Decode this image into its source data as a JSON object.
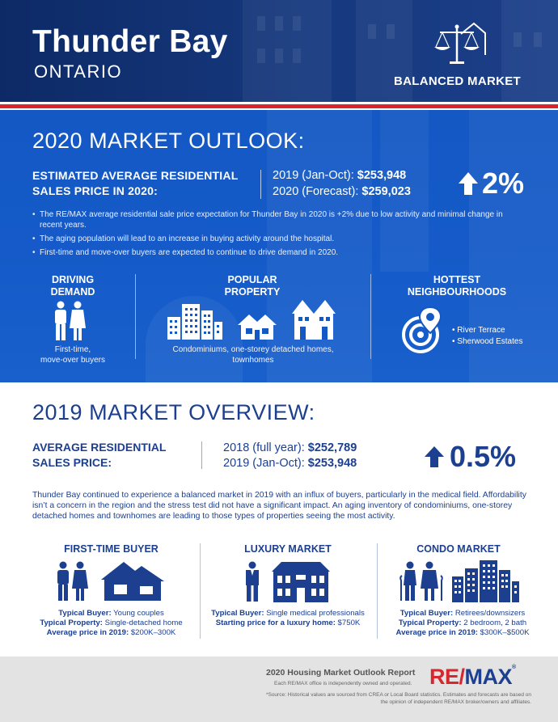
{
  "header": {
    "city": "Thunder Bay",
    "province": "ONTARIO",
    "market_type": "BALANCED MARKET",
    "market_icon": "scale-house-icon"
  },
  "outlook": {
    "title": "2020 MARKET OUTLOOK:",
    "label_line1": "ESTIMATED AVERAGE RESIDENTIAL",
    "label_line2": "SALES PRICE IN 2020:",
    "value1_label": "2019 (Jan-Oct): ",
    "value1": "$253,948",
    "value2_label": "2020 (Forecast): ",
    "value2": "$259,023",
    "change": "2%",
    "change_direction": "up",
    "bullets": [
      "The RE/MAX average residential sale price expectation for Thunder Bay in 2020 is +2% due to low activity and minimal change in recent years.",
      "The aging population will lead to an increase in buying activity around the hospital.",
      "First-time and move-over buyers are expected to continue to drive demand in 2020."
    ],
    "driving_heading_1": "DRIVING",
    "driving_heading_2": "DEMAND",
    "driving_caption_1": "First-time,",
    "driving_caption_2": "move-over buyers",
    "popular_heading_1": "POPULAR",
    "popular_heading_2": "PROPERTY",
    "popular_caption_1": "Condominiums, one-storey detached homes,",
    "popular_caption_2": "townhomes",
    "hottest_heading": "HOTTEST",
    "hottest_heading_2": "NEIGHBOURHOODS",
    "neighbourhoods": [
      "River Terrace",
      "Sherwood Estates"
    ]
  },
  "overview": {
    "title": "2019 MARKET OVERVIEW:",
    "label_line1": "AVERAGE RESIDENTIAL",
    "label_line2": "SALES PRICE:",
    "value1_label": "2018 (full year): ",
    "value1": "$252,789",
    "value2_label": "2019 (Jan-Oct): ",
    "value2": "$253,948",
    "change": "0.5%",
    "change_direction": "up",
    "paragraph": "Thunder Bay continued to experience a balanced market in 2019 with an influx of buyers, particularly in the medical field. Affordability isn’t a concern in the region and the stress test did not have a significant impact. An aging inventory of condominiums, one-storey detached homes and townhomes are leading to those types of properties seeing the most activity.",
    "markets": [
      {
        "heading": "FIRST-TIME BUYER",
        "line1_label": "Typical Buyer:",
        "line1_value": " Young couples",
        "line2_label": "Typical Property:",
        "line2_value": " Single-detached home",
        "line3_label": "Average price in 2019:",
        "line3_value": " $200K–300K"
      },
      {
        "heading": "LUXURY MARKET",
        "line1_label": "Typical Buyer:",
        "line1_value": " Single medical professionals",
        "line2_label": "Starting price for a luxury home:",
        "line2_value": " $750K"
      },
      {
        "heading": "CONDO MARKET",
        "line1_label": "Typical Buyer:",
        "line1_value": " Retirees/downsizers",
        "line2_label": "Typical Property:",
        "line2_value": " 2 bedroom, 2 bath",
        "line3_label": "Average price in 2019:",
        "line3_value": " $300K–$500K"
      }
    ]
  },
  "footer": {
    "report_title": "2020 Housing Market Outlook Report",
    "independent": "Each RE/MAX office is independently owned and operated.",
    "source": "*Source: Historical values are sourced from CREA or Local Board statistics. Estimates and forecasts are based on the opinion of independent RE/MAX broker/owners and affiliates.",
    "logo_red": "RE/",
    "logo_blue": "MAX",
    "logo_mark": "®"
  },
  "colors": {
    "navy": "#1c3f8f",
    "blue_panel": "#1458c4",
    "red": "#d7262e",
    "footer_gray": "#e3e3e3"
  }
}
